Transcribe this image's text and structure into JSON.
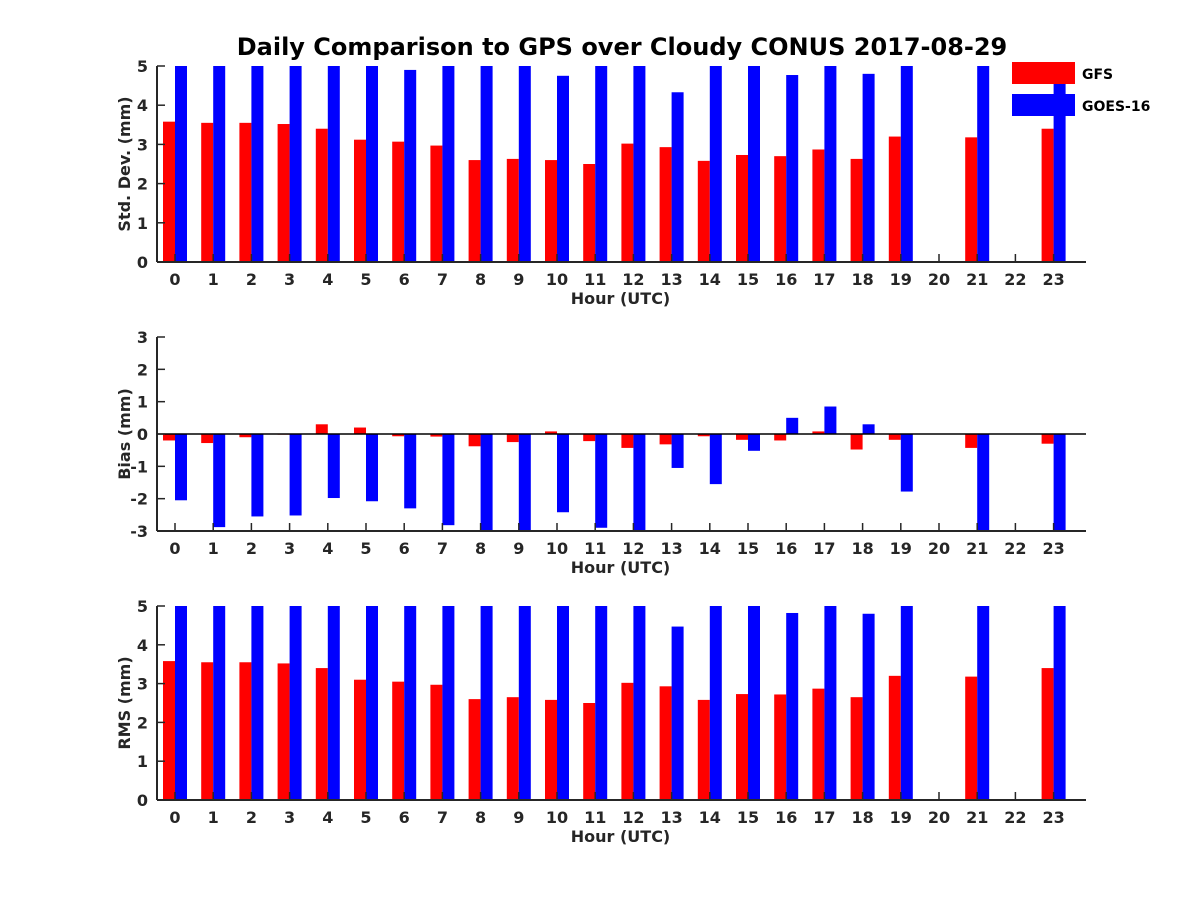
{
  "title": "Daily Comparison to GPS over Cloudy CONUS 2017-08-29",
  "legend": [
    {
      "name": "GFS",
      "color": "#ff0000"
    },
    {
      "name": "GOES-16",
      "color": "#0000ff"
    }
  ],
  "chart_data": [
    {
      "type": "bar",
      "ylabel": "Std. Dev. (mm)",
      "xlabel": "Hour (UTC)",
      "ylim": [
        0,
        5
      ],
      "yticks": [
        0,
        1,
        2,
        3,
        4,
        5
      ],
      "categories": [
        "0",
        "1",
        "2",
        "3",
        "4",
        "5",
        "6",
        "7",
        "8",
        "9",
        "10",
        "11",
        "12",
        "13",
        "14",
        "15",
        "16",
        "17",
        "18",
        "19",
        "20",
        "21",
        "22",
        "23"
      ],
      "series": [
        {
          "name": "GFS",
          "color": "#ff0000",
          "values": [
            3.58,
            3.55,
            3.55,
            3.52,
            3.4,
            3.12,
            3.07,
            2.97,
            2.6,
            2.63,
            2.6,
            2.5,
            3.02,
            2.93,
            2.58,
            2.73,
            2.7,
            2.87,
            2.63,
            3.2,
            null,
            3.18,
            null,
            3.4
          ]
        },
        {
          "name": "GOES-16",
          "color": "#0000ff",
          "values": [
            5,
            5,
            5,
            5,
            5,
            5,
            4.9,
            5,
            5,
            5,
            4.75,
            5,
            5,
            4.33,
            5,
            5,
            4.77,
            5,
            4.8,
            5,
            null,
            5,
            null,
            5
          ]
        }
      ]
    },
    {
      "type": "bar",
      "ylabel": "Bias (mm)",
      "xlabel": "Hour (UTC)",
      "ylim": [
        -3,
        3
      ],
      "yticks": [
        -3,
        -2,
        -1,
        0,
        1,
        2,
        3
      ],
      "categories": [
        "0",
        "1",
        "2",
        "3",
        "4",
        "5",
        "6",
        "7",
        "8",
        "9",
        "10",
        "11",
        "12",
        "13",
        "14",
        "15",
        "16",
        "17",
        "18",
        "19",
        "20",
        "21",
        "22",
        "23"
      ],
      "series": [
        {
          "name": "GFS",
          "color": "#ff0000",
          "values": [
            -0.2,
            -0.28,
            -0.1,
            -0.02,
            0.3,
            0.2,
            -0.07,
            -0.08,
            -0.38,
            -0.25,
            0.08,
            -0.22,
            -0.43,
            -0.32,
            -0.07,
            -0.18,
            -0.2,
            0.08,
            -0.48,
            -0.18,
            null,
            -0.43,
            null,
            -0.3
          ]
        },
        {
          "name": "GOES-16",
          "color": "#0000ff",
          "values": [
            -2.05,
            -2.88,
            -2.55,
            -2.52,
            -1.98,
            -2.08,
            -2.3,
            -2.82,
            -3,
            -3,
            -2.42,
            -2.9,
            -3,
            -1.05,
            -1.55,
            -0.52,
            0.5,
            0.85,
            0.3,
            -1.78,
            null,
            -3,
            null,
            -3
          ]
        }
      ]
    },
    {
      "type": "bar",
      "ylabel": "RMS (mm)",
      "xlabel": "Hour (UTC)",
      "ylim": [
        0,
        5
      ],
      "yticks": [
        0,
        1,
        2,
        3,
        4,
        5
      ],
      "categories": [
        "0",
        "1",
        "2",
        "3",
        "4",
        "5",
        "6",
        "7",
        "8",
        "9",
        "10",
        "11",
        "12",
        "13",
        "14",
        "15",
        "16",
        "17",
        "18",
        "19",
        "20",
        "21",
        "22",
        "23"
      ],
      "series": [
        {
          "name": "GFS",
          "color": "#ff0000",
          "values": [
            3.58,
            3.55,
            3.55,
            3.52,
            3.4,
            3.1,
            3.05,
            2.97,
            2.6,
            2.65,
            2.58,
            2.5,
            3.02,
            2.93,
            2.58,
            2.73,
            2.72,
            2.87,
            2.65,
            3.2,
            null,
            3.18,
            null,
            3.4
          ]
        },
        {
          "name": "GOES-16",
          "color": "#0000ff",
          "values": [
            5,
            5,
            5,
            5,
            5,
            5,
            5,
            5,
            5,
            5,
            5,
            5,
            5,
            4.47,
            5,
            5,
            4.82,
            5,
            4.8,
            5,
            null,
            5,
            null,
            5
          ]
        }
      ]
    }
  ]
}
